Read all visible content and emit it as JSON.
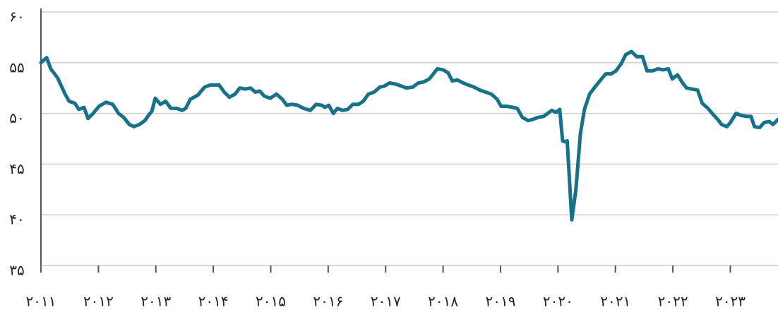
{
  "chart_data": {
    "type": "line",
    "color": "#17718a",
    "x": [
      2011.0,
      2011.1,
      2011.17,
      2011.29,
      2011.42,
      2011.49,
      2011.59,
      2011.66,
      2011.75,
      2011.82,
      2011.91,
      2012.01,
      2012.13,
      2012.25,
      2012.35,
      2012.44,
      2012.54,
      2012.62,
      2012.71,
      2012.81,
      2012.87,
      2012.93,
      2012.99,
      2013.08,
      2013.17,
      2013.26,
      2013.36,
      2013.46,
      2013.52,
      2013.6,
      2013.73,
      2013.85,
      2013.95,
      2014.1,
      2014.19,
      2014.28,
      2014.38,
      2014.46,
      2014.56,
      2014.65,
      2014.73,
      2014.81,
      2014.89,
      2014.99,
      2015.1,
      2015.2,
      2015.28,
      2015.37,
      2015.47,
      2015.57,
      2015.69,
      2015.79,
      2015.89,
      2015.94,
      2016.01,
      2016.09,
      2016.16,
      2016.25,
      2016.34,
      2016.43,
      2016.53,
      2016.61,
      2016.7,
      2016.8,
      2016.9,
      2016.98,
      2017.07,
      2017.17,
      2017.27,
      2017.36,
      2017.47,
      2017.57,
      2017.66,
      2017.76,
      2017.83,
      2017.9,
      2018.0,
      2018.09,
      2018.16,
      2018.25,
      2018.35,
      2018.44,
      2018.54,
      2018.64,
      2018.74,
      2018.84,
      2018.94,
      2019.01,
      2019.11,
      2019.21,
      2019.29,
      2019.38,
      2019.48,
      2019.56,
      2019.65,
      2019.75,
      2019.82,
      2019.89,
      2019.97,
      2020.03,
      2020.08,
      2020.12,
      2020.16,
      2020.24,
      2020.31,
      2020.39,
      2020.46,
      2020.55,
      2020.63,
      2020.73,
      2020.83,
      2020.93,
      2021.01,
      2021.1,
      2021.18,
      2021.28,
      2021.37,
      2021.47,
      2021.55,
      2021.65,
      2021.74,
      2021.83,
      2021.92,
      2021.99,
      2022.08,
      2022.17,
      2022.24,
      2022.33,
      2022.43,
      2022.51,
      2022.61,
      2022.7,
      2022.78,
      2022.85,
      2022.94,
      2023.0,
      2023.1,
      2023.19,
      2023.29,
      2023.36,
      2023.42,
      2023.51,
      2023.59,
      2023.68,
      2023.74,
      2023.83
    ],
    "values": [
      55.0,
      55.5,
      54.4,
      53.5,
      51.9,
      51.2,
      51.0,
      50.4,
      50.6,
      49.5,
      50.0,
      50.7,
      51.1,
      50.9,
      50.0,
      49.6,
      48.9,
      48.7,
      48.9,
      49.3,
      49.8,
      50.2,
      51.5,
      50.9,
      51.2,
      50.5,
      50.5,
      50.3,
      50.5,
      51.4,
      51.8,
      52.6,
      52.8,
      52.8,
      52.1,
      51.6,
      51.9,
      52.5,
      52.4,
      52.5,
      52.1,
      52.2,
      51.7,
      51.5,
      51.9,
      51.4,
      50.8,
      50.9,
      50.8,
      50.5,
      50.3,
      50.9,
      50.8,
      50.6,
      50.8,
      50.0,
      50.5,
      50.3,
      50.4,
      50.9,
      50.9,
      51.2,
      51.9,
      52.1,
      52.6,
      52.7,
      53.0,
      52.9,
      52.7,
      52.5,
      52.6,
      53.0,
      53.1,
      53.4,
      53.9,
      54.4,
      54.3,
      54.0,
      53.2,
      53.3,
      53.0,
      52.8,
      52.6,
      52.3,
      52.1,
      51.9,
      51.4,
      50.7,
      50.7,
      50.6,
      50.5,
      49.6,
      49.3,
      49.4,
      49.6,
      49.7,
      50.0,
      50.3,
      50.1,
      50.4,
      47.3,
      47.2,
      47.3,
      39.5,
      42.4,
      48.0,
      50.4,
      51.9,
      52.5,
      53.2,
      53.9,
      53.9,
      54.2,
      54.9,
      55.8,
      56.1,
      55.6,
      55.6,
      54.2,
      54.2,
      54.4,
      54.3,
      54.4,
      53.4,
      53.8,
      53.0,
      52.5,
      52.4,
      52.3,
      51.0,
      50.5,
      49.9,
      49.4,
      48.9,
      48.7,
      49.1,
      50.0,
      49.8,
      49.7,
      49.7,
      48.7,
      48.6,
      49.1,
      49.2,
      48.9,
      49.4
    ],
    "xlim": [
      2011,
      2023.83
    ],
    "xticks": [
      {
        "value": 2011,
        "label": "۲۰۱۱"
      },
      {
        "value": 2012,
        "label": "۲۰۱۲"
      },
      {
        "value": 2013,
        "label": "۲۰۱۳"
      },
      {
        "value": 2014,
        "label": "۲۰۱۴"
      },
      {
        "value": 2015,
        "label": "۲۰۱۵"
      },
      {
        "value": 2016,
        "label": "۲۰۱۶"
      },
      {
        "value": 2017,
        "label": "۲۰۱۷"
      },
      {
        "value": 2018,
        "label": "۲۰۱۸"
      },
      {
        "value": 2019,
        "label": "۲۰۱۹"
      },
      {
        "value": 2020,
        "label": "۲۰۲۰"
      },
      {
        "value": 2021,
        "label": "۲۰۲۱"
      },
      {
        "value": 2022,
        "label": "۲۰۲۲"
      },
      {
        "value": 2023,
        "label": "۲۰۲۳"
      }
    ],
    "ylim": [
      35,
      60
    ],
    "yticks": [
      {
        "value": 35,
        "label": "۳۵"
      },
      {
        "value": 40,
        "label": "۴۰"
      },
      {
        "value": 45,
        "label": "۴۵"
      },
      {
        "value": 50,
        "label": "۵۰"
      },
      {
        "value": 55,
        "label": "۵۵"
      },
      {
        "value": 60,
        "label": "۶۰"
      }
    ],
    "grid": true
  }
}
